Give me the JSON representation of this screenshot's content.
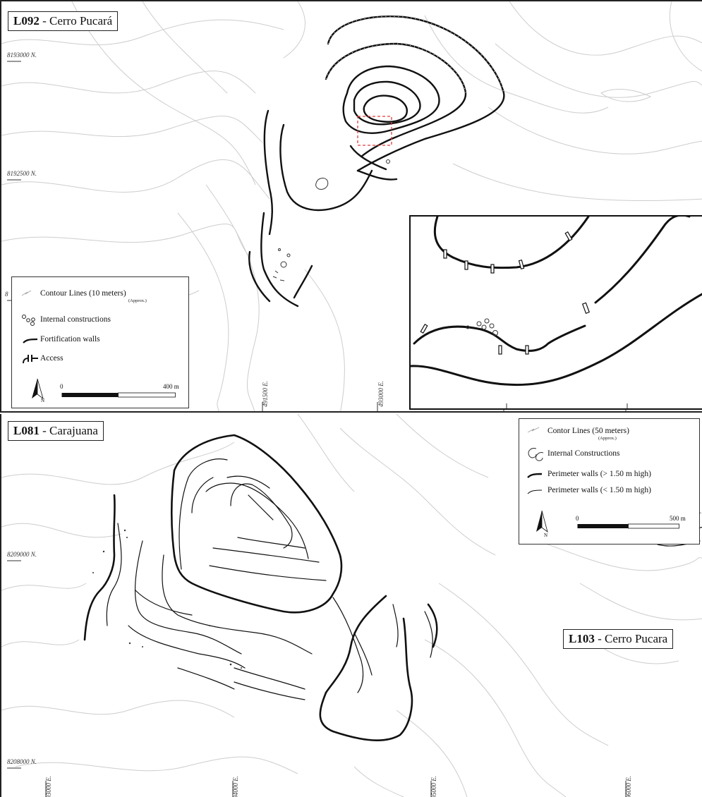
{
  "top_map": {
    "site_code": "L092",
    "site_name": " - Cerro Pucará",
    "coords": {
      "n1": "8193000 N.",
      "n2": "8192500 N.",
      "n3": "8",
      "e1": "491500 E.",
      "e2": "493000 E."
    },
    "legend": {
      "contour_label": "Contour Lines (10 meters)",
      "contour_note": "(Approx.)",
      "constructions_label": "Internal constructions",
      "walls_label": "Fortification walls",
      "access_label": "Access",
      "scale_start": "0",
      "scale_end": "400 m",
      "north_icon": "north-arrow-icon"
    },
    "colors": {
      "contour": "#c9c9c9",
      "wall": "#111111",
      "highlight": "#e23b3b"
    }
  },
  "bottom_map": {
    "site_code": "L081",
    "site_name": " - Carajuana",
    "second_site_code": "L103",
    "second_site_name": " - Cerro Pucara",
    "coords": {
      "n1": "8209000 N.",
      "n2": "8208000 N.",
      "e1": "493000 E.",
      "e2": "494000 E.",
      "e3": "495000 E.",
      "e4": "496000 E."
    },
    "legend": {
      "contour_label": "Contor Lines (50 meters)",
      "contour_note": "(Approx.)",
      "constructions_label": "Internal Constructions",
      "high_walls_label": "Perimeter walls (> 1.50 m high)",
      "low_walls_label": "Perimeter walls (< 1.50 m high)",
      "scale_start": "0",
      "scale_end": "500 m",
      "north_icon": "north-arrow-icon"
    }
  }
}
